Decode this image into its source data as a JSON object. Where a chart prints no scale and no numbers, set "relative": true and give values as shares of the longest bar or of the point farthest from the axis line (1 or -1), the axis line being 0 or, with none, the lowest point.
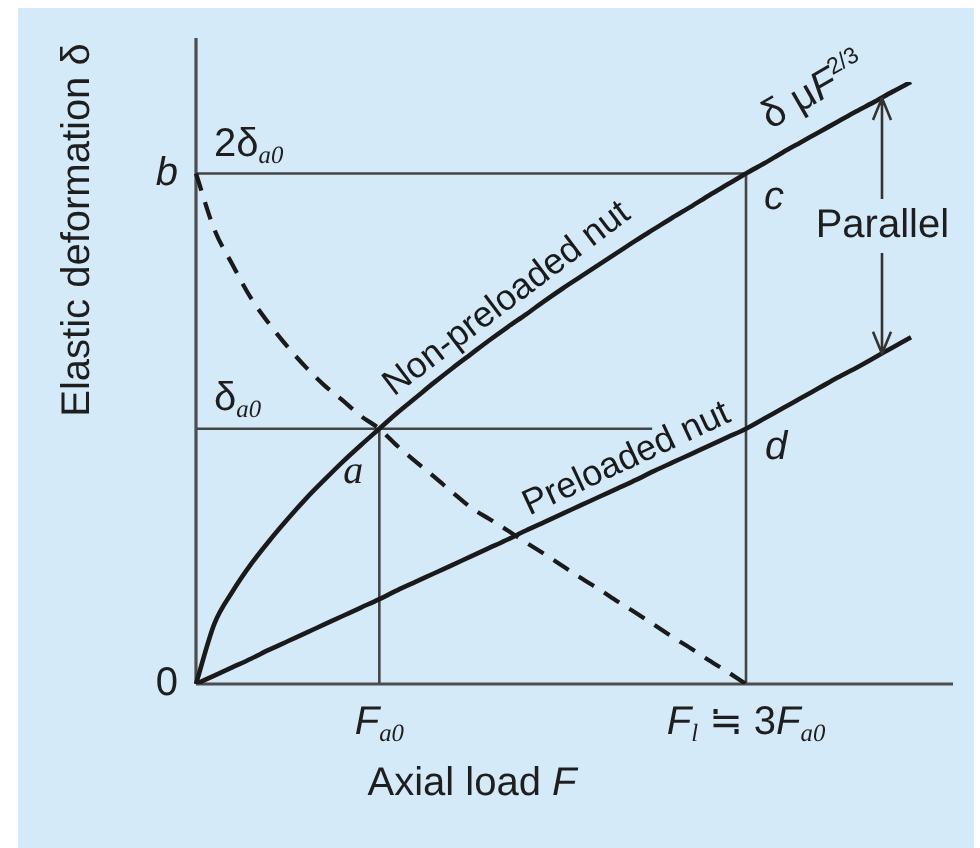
{
  "chart_data": {
    "type": "line",
    "xlabel": "Axial load F",
    "ylabel": "Elastic deformation δ",
    "relative": true,
    "marker": "none",
    "categories": [
      null,
      null,
      null,
      null,
      null,
      null,
      null,
      null,
      null,
      null,
      "F$_{a0}$",
      null,
      null,
      null,
      null,
      null,
      null,
      null,
      null,
      null,
      null,
      null,
      null,
      null,
      null,
      null,
      null,
      null,
      null,
      null,
      "F$_{l}$ ≒ 3F$_{a0}$",
      null,
      null,
      null,
      null,
      null,
      null,
      null,
      null,
      null
    ],
    "series": [
      {
        "name": "Non-preloaded nut",
        "color": "#1a1a1a",
        "values": [
          0,
          0.1,
          0.154,
          0.199,
          0.238,
          0.274,
          0.308,
          0.339,
          0.369,
          0.397,
          0.424,
          0.451,
          0.476,
          0.501,
          0.525,
          0.548,
          0.571,
          0.593,
          0.614,
          0.636,
          0.657,
          0.677,
          0.697,
          0.717,
          0.737,
          0.756,
          0.775,
          0.793,
          0.812,
          0.83,
          0.848,
          0.865,
          0.883,
          0.9,
          0.917,
          0.934,
          0.951,
          0.967,
          0.984,
          1
        ]
      },
      {
        "name": "Preloaded nut",
        "color": "#1a1a1a",
        "values": [
          0,
          0.014,
          0.028,
          0.042,
          0.057,
          0.071,
          0.085,
          0.099,
          0.113,
          0.127,
          0.141,
          0.156,
          0.17,
          0.184,
          0.198,
          0.212,
          0.226,
          0.24,
          0.255,
          0.269,
          0.283,
          0.297,
          0.311,
          0.325,
          0.339,
          0.354,
          0.368,
          0.382,
          0.396,
          0.41,
          0.424,
          0.441,
          0.458,
          0.475,
          0.492,
          0.509,
          0.525,
          0.542,
          0.559,
          0.576
        ]
      },
      {
        "color": "#1a1a1a",
        "line_style": "dashed",
        "values": [
          0.848,
          0.755,
          0.696,
          0.641,
          0.598,
          0.56,
          0.526,
          0.496,
          0.471,
          0.445,
          0.424,
          0.395,
          0.369,
          0.344,
          0.318,
          0.293,
          0.274,
          0.255,
          0.235,
          0.216,
          0.196,
          0.176,
          0.157,
          0.137,
          0.118,
          0.098,
          0.078,
          0.059,
          0.039,
          0.02,
          0,
          null,
          null,
          null,
          null,
          null,
          null,
          null,
          null,
          null
        ]
      }
    ],
    "ref_lines": [
      {
        "axis": "y",
        "value": 0.848,
        "label": "2δ$_{a0}$",
        "color": "#444444"
      },
      {
        "axis": "y",
        "value": 0.424,
        "label": "δ$_{a0}$",
        "color": "#444444"
      },
      {
        "axis": "x",
        "value": "F$_{a0}$",
        "color": "#444444"
      },
      {
        "axis": "x",
        "value": "F$_{l}$ ≒ 3F$_{a0}$",
        "color": "#444444"
      }
    ],
    "annotations": [
      "0",
      "b",
      {
        "text": "a",
        "x": "F$_{a0}$",
        "y": 0.424
      },
      {
        "text": "c",
        "x": "F$_{l}$ ≒ 3F$_{a0}$",
        "y": 0.848
      },
      {
        "text": "d",
        "x": "F$_{l}$ ≒ 3F$_{a0}$",
        "y": 0.424
      },
      "δ μF$^{2/3}$",
      "Parallel"
    ]
  }
}
